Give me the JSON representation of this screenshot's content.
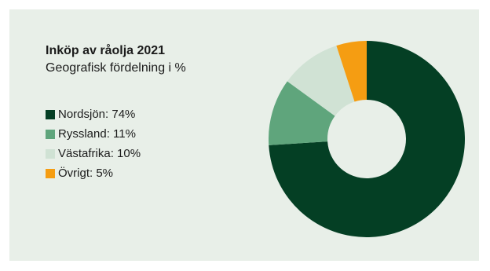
{
  "chart_data": {
    "type": "pie",
    "title": "Inköp av råolja 2021",
    "subtitle": "Geografisk fördelning i %",
    "legend_position": "left",
    "categories": [
      "Nordsjön",
      "Ryssland",
      "Västafrika",
      "Övrigt"
    ],
    "values": [
      74,
      11,
      10,
      5
    ],
    "legend_labels": [
      "Nordsjön: 74%",
      "Ryssland: 11%",
      "Västafrika: 10%",
      "Övrigt: 5%"
    ],
    "colors": [
      "#043f24",
      "#5fa57c",
      "#d0e2d4",
      "#f59d12"
    ],
    "donut": true
  }
}
